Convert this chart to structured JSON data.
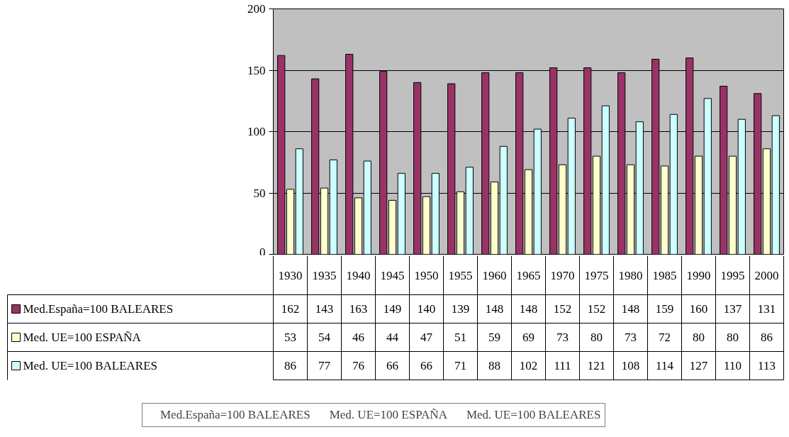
{
  "chart_data": {
    "type": "bar",
    "categories": [
      "1930",
      "1935",
      "1940",
      "1945",
      "1950",
      "1955",
      "1960",
      "1965",
      "1970",
      "1975",
      "1980",
      "1985",
      "1990",
      "1995",
      "2000"
    ],
    "series": [
      {
        "name": "Med.España=100 BALEARES",
        "color": "#993366",
        "values": [
          162,
          143,
          163,
          149,
          140,
          139,
          148,
          148,
          152,
          152,
          148,
          159,
          160,
          137,
          131
        ]
      },
      {
        "name": "Med. UE=100 ESPAÑA",
        "color": "#ffffcc",
        "values": [
          53,
          54,
          46,
          44,
          47,
          51,
          59,
          69,
          73,
          80,
          73,
          72,
          80,
          80,
          86
        ]
      },
      {
        "name": "Med. UE=100 BALEARES",
        "color": "#ccffff",
        "values": [
          86,
          77,
          76,
          66,
          66,
          71,
          88,
          102,
          111,
          121,
          108,
          114,
          127,
          110,
          113
        ]
      }
    ],
    "ylim": [
      0,
      200
    ],
    "yticks": [
      0,
      50,
      100,
      150,
      200
    ],
    "grid": "y",
    "legend": "bottom",
    "data_labels": true
  }
}
